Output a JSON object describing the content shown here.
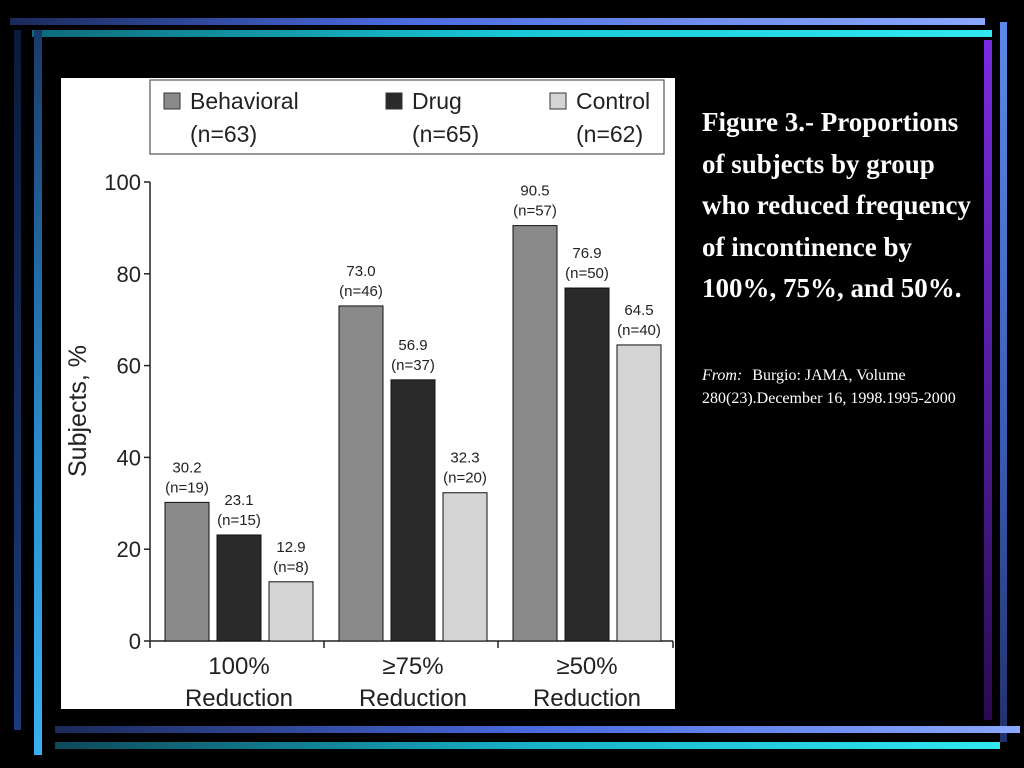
{
  "caption": {
    "title": "Figure 3.- Proportions of subjects by group who reduced frequency of incontinence by 100%, 75%, and 50%.",
    "source_label": "From:",
    "source_text": "Burgio: JAMA, Volume 280(23).December 16, 1998.1995-2000"
  },
  "chart_data": {
    "type": "bar",
    "title": "",
    "xlabel": "",
    "ylabel": "Subjects, %",
    "ylim": [
      0,
      100
    ],
    "yticks": [
      "0",
      "20",
      "40",
      "60",
      "80",
      "100"
    ],
    "grid": false,
    "legend_position": "top",
    "categories": [
      [
        "100%",
        "Reduction"
      ],
      [
        "≥75%",
        "Reduction"
      ],
      [
        "≥50%",
        "Reduction"
      ]
    ],
    "series": [
      {
        "name": "Behavioral",
        "sublabel": "(n=63)",
        "color": "#8a8a8a",
        "values": [
          30.2,
          73.0,
          90.5
        ],
        "labels": [
          "30.2",
          "73.0",
          "90.5"
        ],
        "n_labels": [
          "(n=19)",
          "(n=46)",
          "(n=57)"
        ]
      },
      {
        "name": "Drug",
        "sublabel": "(n=65)",
        "color": "#2a2a2a",
        "values": [
          23.1,
          56.9,
          76.9
        ],
        "labels": [
          "23.1",
          "56.9",
          "76.9"
        ],
        "n_labels": [
          "(n=15)",
          "(n=37)",
          "(n=50)"
        ]
      },
      {
        "name": "Control",
        "sublabel": "(n=62)",
        "color": "#d4d4d4",
        "values": [
          12.9,
          32.3,
          64.5
        ],
        "labels": [
          "12.9",
          "32.3",
          "64.5"
        ],
        "n_labels": [
          "(n=8)",
          "(n=20)",
          "(n=40)"
        ]
      }
    ]
  }
}
